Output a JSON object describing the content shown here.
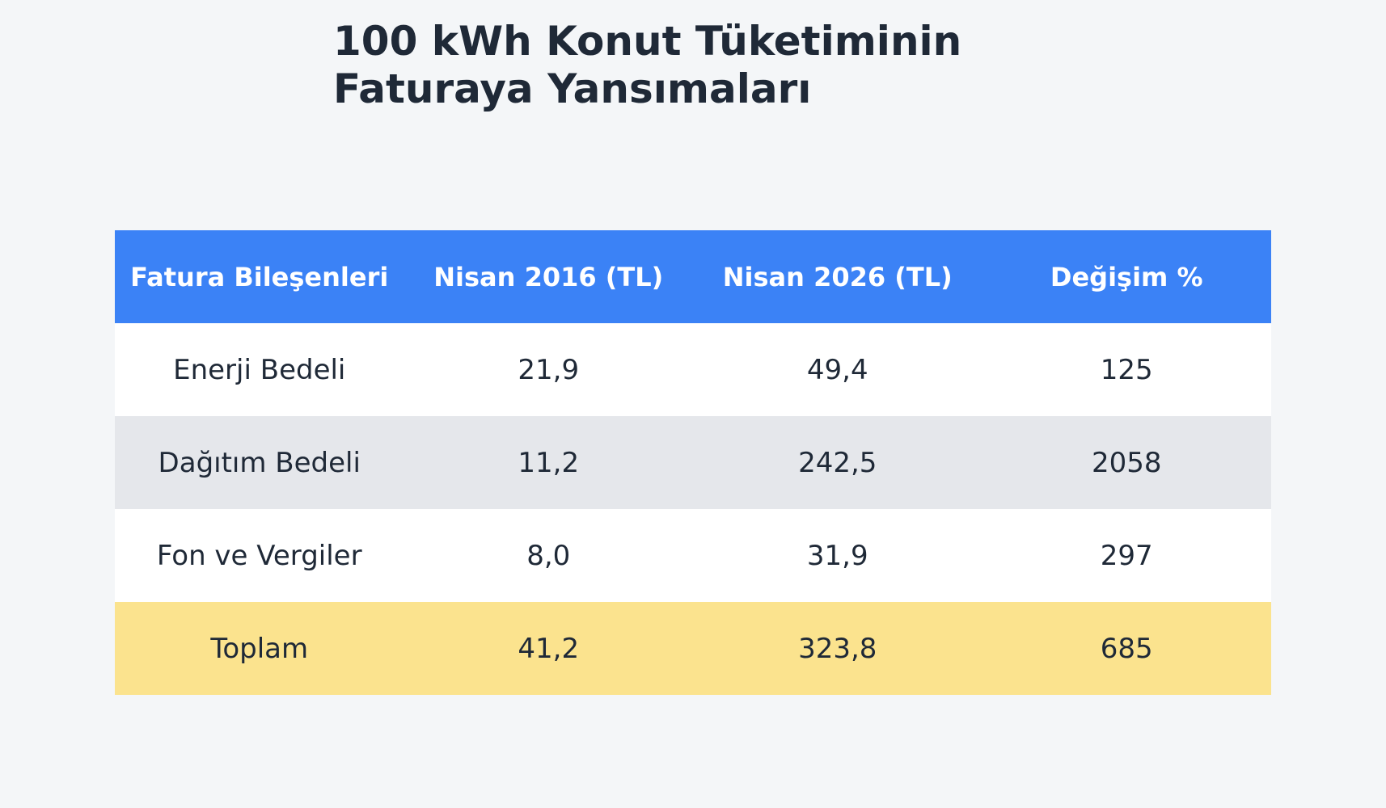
{
  "header": {
    "title_lines": [
      "100 kWh Konut Tüketiminin",
      "Faturaya Yansımaları"
    ]
  },
  "table": {
    "columns": [
      "Fatura Bileşenleri",
      "Nisan 2016 (TL)",
      "Nisan 2026 (TL)",
      "Değişim %"
    ],
    "rows": [
      [
        "Enerji Bedeli",
        "21,9",
        "49,4",
        "125"
      ],
      [
        "Dağıtım Bedeli",
        "11,2",
        "242,5",
        "2058"
      ],
      [
        "Fon ve Vergiler",
        "8,0",
        "31,9",
        "297"
      ],
      [
        "Toplam",
        "41,2",
        "323,8",
        "685"
      ]
    ]
  }
}
